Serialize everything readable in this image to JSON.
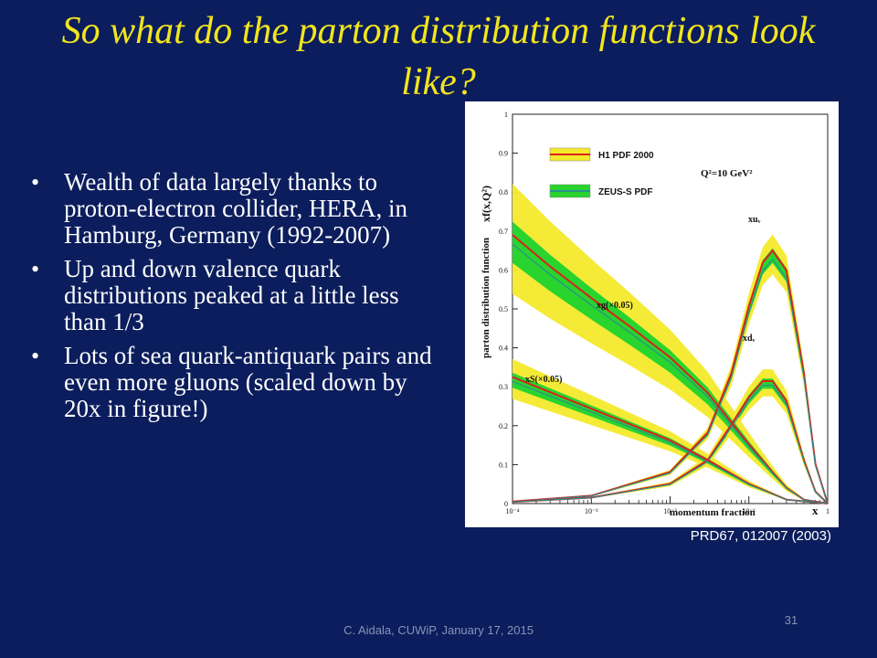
{
  "slide": {
    "title": "So what do the parton distribution functions look like?",
    "bullets": [
      "Wealth of data largely thanks to proton-electron collider, HERA, in Hamburg, Germany (1992-2007)",
      "Up and down valence quark distributions peaked at a little less than 1/3",
      "Lots of sea quark-antiquark pairs and even more gluons (scaled down by 20x in figure!)"
    ],
    "footer": "C. Aidala, CUWiP, January 17, 2015",
    "page_number": "31",
    "caption": "PRD67, 012007 (2003)"
  },
  "colors": {
    "background": "#0b1d5c",
    "title": "#f2e51e",
    "h1_band": "#f4ea2c",
    "h1_line": "#d9221b",
    "zeus_band": "#29d42e",
    "zeus_line": "#2a8f8f"
  },
  "chart_data": {
    "type": "line",
    "ylabel": "parton distribution function",
    "yaxis_symbol": "xf(x,Q²)",
    "xlabel": "momentum fraction",
    "xaxis_symbol": "x",
    "x_scale": "log",
    "xlim": [
      0.0001,
      1
    ],
    "ylim": [
      0,
      1
    ],
    "x_ticks": [
      "10⁻⁴",
      "10⁻³",
      "10⁻²",
      "10⁻¹",
      "1"
    ],
    "y_ticks": [
      "0",
      "0.1",
      "0.2",
      "0.3",
      "0.4",
      "0.5",
      "0.6",
      "0.7",
      "0.8",
      "0.9",
      "1"
    ],
    "legend": [
      "H1 PDF 2000",
      "ZEUS-S PDF"
    ],
    "legend_position": "top-left",
    "annotation": "Q²=10 GeV²",
    "series": [
      {
        "name": "xuᵥ",
        "x": [
          0.0001,
          0.001,
          0.01,
          0.03,
          0.06,
          0.1,
          0.15,
          0.2,
          0.3,
          0.5,
          0.7,
          1
        ],
        "y": [
          0.005,
          0.02,
          0.08,
          0.18,
          0.33,
          0.5,
          0.61,
          0.64,
          0.59,
          0.33,
          0.1,
          0
        ]
      },
      {
        "name": "xdᵥ",
        "x": [
          0.0001,
          0.001,
          0.01,
          0.03,
          0.06,
          0.1,
          0.15,
          0.2,
          0.3,
          0.5,
          0.7,
          1
        ],
        "y": [
          0.004,
          0.015,
          0.05,
          0.11,
          0.2,
          0.27,
          0.31,
          0.31,
          0.26,
          0.11,
          0.03,
          0
        ]
      },
      {
        "name": "xg(×0.05)",
        "x": [
          0.0001,
          0.0003,
          0.001,
          0.003,
          0.01,
          0.03,
          0.1,
          0.2,
          0.3,
          0.5,
          1
        ],
        "y": [
          0.68,
          0.6,
          0.52,
          0.45,
          0.37,
          0.28,
          0.15,
          0.08,
          0.04,
          0.01,
          0
        ]
      },
      {
        "name": "xS(×0.05)",
        "x": [
          0.0001,
          0.001,
          0.01,
          0.03,
          0.1,
          0.3,
          1
        ],
        "y": [
          0.32,
          0.24,
          0.16,
          0.11,
          0.05,
          0.01,
          0
        ]
      }
    ]
  }
}
